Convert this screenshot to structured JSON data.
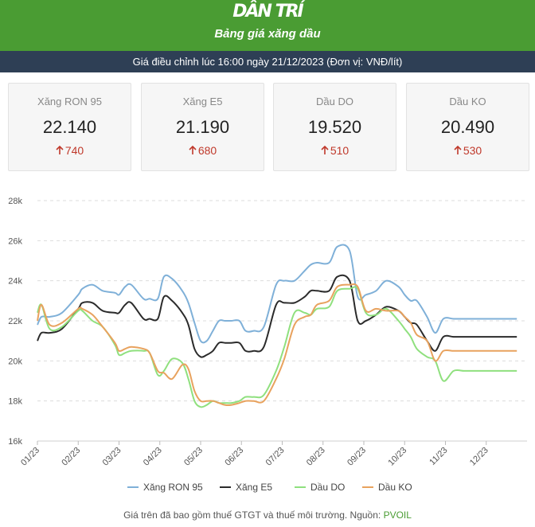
{
  "header": {
    "logo": "DÂN TRÍ",
    "title": "Bảng giá xăng dầu",
    "notice": "Giá điều chỉnh lúc 16:00 ngày 21/12/2023 (Đơn vị: VNĐ/lít)"
  },
  "cards": [
    {
      "name": "Xăng RON 95",
      "price": "22.140",
      "change": "740",
      "direction": "up"
    },
    {
      "name": "Xăng E5",
      "price": "21.190",
      "change": "680",
      "direction": "up"
    },
    {
      "name": "Dầu DO",
      "price": "19.520",
      "change": "510",
      "direction": "up"
    },
    {
      "name": "Dầu KO",
      "price": "20.490",
      "change": "530",
      "direction": "up"
    }
  ],
  "colors": {
    "header_green": "#4a9c33",
    "bar_navy": "#2e3f55",
    "up_red": "#c0392b"
  },
  "chart_data": {
    "type": "line",
    "title": "",
    "xlabel": "",
    "ylabel": "",
    "x_tick_labels": [
      "01/23",
      "02/23",
      "03/23",
      "04/23",
      "05/23",
      "06/23",
      "07/23",
      "08/23",
      "09/23",
      "10/23",
      "11/23",
      "12/23"
    ],
    "y_tick_labels": [
      "16k",
      "18k",
      "20k",
      "22k",
      "24k",
      "26k",
      "28k"
    ],
    "ylim": [
      16000,
      28000
    ],
    "grid": true,
    "legend_position": "bottom",
    "x": [
      0.0,
      0.1,
      0.3,
      0.6,
      1.0,
      1.1,
      1.35,
      1.6,
      1.9,
      2.0,
      2.15,
      2.3,
      2.6,
      2.75,
      2.95,
      3.1,
      3.3,
      3.55,
      3.7,
      3.85,
      4.0,
      4.15,
      4.3,
      4.45,
      4.6,
      4.75,
      4.95,
      5.1,
      5.3,
      5.55,
      5.85,
      6.05,
      6.3,
      6.55,
      6.7,
      6.85,
      7.15,
      7.35,
      7.65,
      7.85,
      8.05,
      8.3,
      8.55,
      8.85,
      9.0,
      9.15,
      9.3,
      9.55,
      9.75,
      9.95,
      10.2,
      10.45,
      10.6,
      10.8,
      10.95,
      11.15,
      11.45,
      11.6,
      11.75
    ],
    "series": [
      {
        "name": "Xăng RON 95",
        "color": "#7fb0d8",
        "values": [
          21800,
          22200,
          22200,
          22400,
          23300,
          23600,
          23800,
          23500,
          23400,
          23300,
          23700,
          23800,
          23100,
          23100,
          23100,
          24200,
          24100,
          23500,
          22900,
          21900,
          21000,
          21000,
          21500,
          22000,
          22000,
          22000,
          22000,
          21500,
          21500,
          21700,
          23800,
          24000,
          24000,
          24500,
          24800,
          24900,
          24900,
          25700,
          25500,
          23200,
          23300,
          23500,
          24000,
          23700,
          23300,
          23000,
          23000,
          22200,
          21400,
          22100,
          22100,
          22100,
          22100,
          22100,
          22100,
          22100,
          22100,
          22100,
          22100
        ]
      },
      {
        "name": "Xăng E5",
        "color": "#2b2b2b",
        "values": [
          21000,
          21400,
          21400,
          21600,
          22600,
          22900,
          22900,
          22500,
          22400,
          22400,
          22800,
          22900,
          22100,
          22100,
          22100,
          23200,
          23000,
          22400,
          21800,
          20600,
          20200,
          20300,
          20500,
          20900,
          20900,
          20900,
          20900,
          20500,
          20500,
          20700,
          22800,
          22900,
          22900,
          23200,
          23500,
          23500,
          23500,
          24200,
          24000,
          22000,
          22000,
          22300,
          22700,
          22500,
          22200,
          21900,
          21800,
          21000,
          20500,
          21200,
          21200,
          21200,
          21200,
          21200,
          21200,
          21200,
          21200,
          21200,
          21200
        ]
      },
      {
        "name": "Dầu DO",
        "color": "#8fe07e",
        "values": [
          22400,
          22800,
          21600,
          21700,
          22500,
          22500,
          22000,
          21700,
          20800,
          20300,
          20400,
          20500,
          20500,
          20400,
          19300,
          19500,
          20100,
          19900,
          19100,
          18000,
          17700,
          17800,
          18000,
          17900,
          17900,
          17900,
          18000,
          18200,
          18200,
          18300,
          19500,
          20700,
          22400,
          22400,
          22300,
          22600,
          22700,
          23500,
          23600,
          23600,
          22400,
          22300,
          22600,
          22000,
          21600,
          21200,
          20600,
          20200,
          20000,
          19000,
          19500,
          19500,
          19500,
          19500,
          19500,
          19500,
          19500,
          19500,
          19500
        ]
      },
      {
        "name": "Dầu KO",
        "color": "#e8a25e",
        "values": [
          22000,
          22800,
          21800,
          21900,
          22600,
          22600,
          22300,
          21700,
          20900,
          20500,
          20600,
          20700,
          20600,
          20400,
          19500,
          19400,
          19100,
          19800,
          19600,
          18500,
          18000,
          18000,
          18000,
          17900,
          17800,
          17800,
          17900,
          18000,
          18000,
          18000,
          19100,
          20100,
          21800,
          22200,
          22300,
          22800,
          23000,
          23700,
          23800,
          23700,
          22500,
          22600,
          22500,
          22500,
          22200,
          21900,
          21300,
          21000,
          20000,
          20500,
          20500,
          20500,
          20500,
          20500,
          20500,
          20500,
          20500,
          20500,
          20500
        ]
      }
    ]
  },
  "legend": [
    "Xăng RON 95",
    "Xăng E5",
    "Dầu DO",
    "Dầu KO"
  ],
  "footer": {
    "text": "Giá trên đã bao gồm thuế GTGT và thuế môi trường. Nguồn: ",
    "source": "PVOIL"
  }
}
